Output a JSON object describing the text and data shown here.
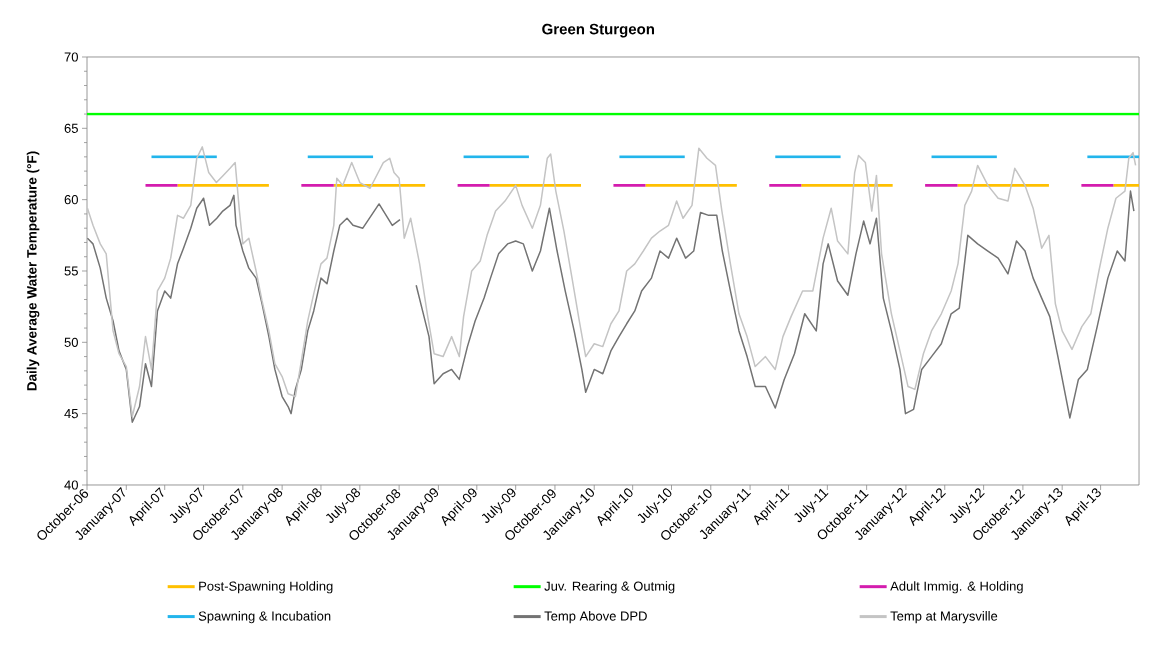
{
  "chart_data": {
    "type": "line",
    "title": "Green Sturgeon",
    "ylabel": "Daily Average Water Temperature (°F)",
    "xlim": [
      "2006-10-01",
      "2013-06-30"
    ],
    "xticks": [
      {
        "value": "2006-10-01",
        "label": "October-06"
      },
      {
        "value": "2007-01-01",
        "label": "January-07"
      },
      {
        "value": "2007-04-01",
        "label": "April-07"
      },
      {
        "value": "2007-07-01",
        "label": "July-07"
      },
      {
        "value": "2007-10-01",
        "label": "October-07"
      },
      {
        "value": "2008-01-01",
        "label": "January-08"
      },
      {
        "value": "2008-04-01",
        "label": "April-08"
      },
      {
        "value": "2008-07-01",
        "label": "July-08"
      },
      {
        "value": "2008-10-01",
        "label": "October-08"
      },
      {
        "value": "2009-01-01",
        "label": "January-09"
      },
      {
        "value": "2009-04-01",
        "label": "April-09"
      },
      {
        "value": "2009-07-01",
        "label": "July-09"
      },
      {
        "value": "2009-10-01",
        "label": "October-09"
      },
      {
        "value": "2010-01-01",
        "label": "January-10"
      },
      {
        "value": "2010-04-01",
        "label": "April-10"
      },
      {
        "value": "2010-07-01",
        "label": "July-10"
      },
      {
        "value": "2010-10-01",
        "label": "October-10"
      },
      {
        "value": "2011-01-01",
        "label": "January-11"
      },
      {
        "value": "2011-04-01",
        "label": "April-11"
      },
      {
        "value": "2011-07-01",
        "label": "July-11"
      },
      {
        "value": "2011-10-01",
        "label": "October-11"
      },
      {
        "value": "2012-01-01",
        "label": "January-12"
      },
      {
        "value": "2012-04-01",
        "label": "April-12"
      },
      {
        "value": "2012-07-01",
        "label": "July-12"
      },
      {
        "value": "2012-10-01",
        "label": "October-12"
      },
      {
        "value": "2013-01-01",
        "label": "January-13"
      },
      {
        "value": "2013-04-01",
        "label": "April-13"
      }
    ],
    "ylim": [
      40,
      70
    ],
    "yticks": [
      40,
      {
        "value": 41,
        "label": null
      },
      {
        "value": 42,
        "label": null
      },
      {
        "value": 43,
        "label": null
      },
      {
        "value": 44,
        "label": null
      },
      45,
      {
        "value": 46,
        "label": null
      },
      {
        "value": 47,
        "label": null
      },
      {
        "value": 48,
        "label": null
      },
      {
        "value": 49,
        "label": null
      },
      50,
      {
        "value": 51,
        "label": null
      },
      {
        "value": 52,
        "label": null
      },
      {
        "value": 53,
        "label": null
      },
      {
        "value": 54,
        "label": null
      },
      55,
      {
        "value": 56,
        "label": null
      },
      {
        "value": 57,
        "label": null
      },
      {
        "value": 58,
        "label": null
      },
      {
        "value": 59,
        "label": null
      },
      60,
      {
        "value": 61,
        "label": null
      },
      {
        "value": 62,
        "label": null
      },
      {
        "value": 63,
        "label": null
      },
      {
        "value": 64,
        "label": null
      },
      65,
      {
        "value": 66,
        "label": null
      },
      {
        "value": 67,
        "label": null
      },
      {
        "value": 68,
        "label": null
      },
      {
        "value": 69,
        "label": null
      },
      70
    ],
    "legend": "bottom",
    "line_style": "solid",
    "series": [
      {
        "name": "Post-Spawning Holding",
        "color": "#ffc000",
        "x": [
          "2007-05-01",
          "2007-12-01",
          "2007-12-15",
          "2008-05-01",
          "2008-12-01",
          "2008-12-15",
          "2009-05-01",
          "2009-12-01",
          "2009-12-15",
          "2010-05-01",
          "2010-12-01",
          "2010-12-15",
          "2011-05-01",
          "2011-12-01",
          "2011-12-15",
          "2012-05-01",
          "2012-12-01",
          "2012-12-15",
          "2013-05-01",
          "2013-06-30"
        ],
        "values": [
          61,
          61,
          null,
          61,
          61,
          null,
          61,
          61,
          null,
          61,
          61,
          null,
          61,
          61,
          null,
          61,
          61,
          null,
          61,
          61
        ]
      },
      {
        "name": "Juv. Rearing & Outmig",
        "color": "#00ff00",
        "x": [
          "2006-10-01",
          "2013-06-30"
        ],
        "values": [
          66,
          66
        ]
      },
      {
        "name": "Adult Immig. & Holding",
        "color": "#d41cae",
        "x": [
          "2007-02-15",
          "2007-05-01",
          "2007-05-15",
          "2008-02-15",
          "2008-05-01",
          "2008-05-15",
          "2009-02-15",
          "2009-05-01",
          "2009-05-15",
          "2010-02-15",
          "2010-05-01",
          "2010-05-15",
          "2011-02-15",
          "2011-05-01",
          "2011-05-15",
          "2012-02-15",
          "2012-05-01",
          "2012-05-15",
          "2013-02-15",
          "2013-05-01"
        ],
        "values": [
          61,
          61,
          null,
          61,
          61,
          null,
          61,
          61,
          null,
          61,
          61,
          null,
          61,
          61,
          null,
          61,
          61,
          null,
          61,
          61
        ]
      },
      {
        "name": "Spawning & Incubation",
        "color": "#22b5ec",
        "x": [
          "2007-03-01",
          "2007-08-01",
          "2007-08-15",
          "2008-03-01",
          "2008-08-01",
          "2008-08-15",
          "2009-03-01",
          "2009-08-01",
          "2009-08-15",
          "2010-03-01",
          "2010-08-01",
          "2010-08-15",
          "2011-03-01",
          "2011-08-01",
          "2011-08-15",
          "2012-03-01",
          "2012-08-01",
          "2012-08-15",
          "2013-03-01",
          "2013-06-30"
        ],
        "values": [
          63,
          63,
          null,
          63,
          63,
          null,
          63,
          63,
          null,
          63,
          63,
          null,
          63,
          63,
          null,
          63,
          63,
          null,
          63,
          63
        ]
      },
      {
        "name": "Temp Above DPD",
        "color": "#737373",
        "x": [
          "2006-10-02",
          "2006-10-15",
          "2006-11-01",
          "2006-11-15",
          "2006-12-01",
          "2006-12-15",
          "2007-01-01",
          "2007-01-15",
          "2007-02-01",
          "2007-02-15",
          "2007-03-01",
          "2007-03-15",
          "2007-04-01",
          "2007-04-15",
          "2007-05-01",
          "2007-05-15",
          "2007-06-01",
          "2007-06-15",
          "2007-07-01",
          "2007-07-15",
          "2007-08-01",
          "2007-08-15",
          "2007-09-01",
          "2007-09-10",
          "2007-09-15",
          "2007-10-01",
          "2007-10-15",
          "2007-11-01",
          "2007-11-15",
          "2007-12-01",
          "2007-12-15",
          "2008-01-01",
          "2008-01-15",
          "2008-01-22",
          "2008-02-01",
          "2008-02-15",
          "2008-03-01",
          "2008-03-15",
          "2008-04-01",
          "2008-04-15",
          "2008-05-01",
          "2008-05-15",
          "2008-06-01",
          "2008-06-15",
          "2008-07-08",
          "2008-08-15",
          "2008-09-15",
          "2008-10-03",
          "2008-10-20",
          "2008-11-10",
          "2008-11-25",
          "2008-12-10",
          "2008-12-22",
          "2009-01-12",
          "2009-02-01",
          "2009-02-19",
          "2009-03-10",
          "2009-03-28",
          "2009-04-18",
          "2009-05-03",
          "2009-05-22",
          "2009-06-12",
          "2009-07-01",
          "2009-07-19",
          "2009-08-09",
          "2009-08-28",
          "2009-09-18",
          "2009-10-06",
          "2009-10-25",
          "2009-11-15",
          "2009-12-03",
          "2009-12-12",
          "2010-01-01",
          "2010-01-21",
          "2010-02-09",
          "2010-02-28",
          "2010-03-18",
          "2010-04-06",
          "2010-04-22",
          "2010-05-15",
          "2010-06-04",
          "2010-06-24",
          "2010-07-13",
          "2010-08-03",
          "2010-08-22",
          "2010-09-07",
          "2010-09-26",
          "2010-10-15",
          "2010-10-28",
          "2010-11-16",
          "2010-12-06",
          "2010-12-25",
          "2011-01-13",
          "2011-02-06",
          "2011-03-01",
          "2011-03-22",
          "2011-04-15",
          "2011-05-09",
          "2011-06-05",
          "2011-06-21",
          "2011-07-03",
          "2011-07-25",
          "2011-08-18",
          "2011-09-06",
          "2011-09-24",
          "2011-10-09",
          "2011-10-24",
          "2011-11-09",
          "2011-11-28",
          "2011-12-18",
          "2011-12-31",
          "2012-01-19",
          "2012-02-07",
          "2012-03-01",
          "2012-03-24",
          "2012-04-16",
          "2012-05-05",
          "2012-05-25",
          "2012-06-17",
          "2012-07-11",
          "2012-08-04",
          "2012-08-27",
          "2012-09-16",
          "2012-10-06",
          "2012-10-25",
          "2012-11-14",
          "2012-12-03",
          "2012-12-22",
          "2013-01-19",
          "2013-02-08",
          "2013-03-01",
          "2013-03-24",
          "2013-04-18",
          "2013-05-10",
          "2013-05-28",
          "2013-06-10",
          "2013-06-18"
        ],
        "values": [
          57.3,
          56.9,
          55.2,
          53.1,
          51.5,
          49.4,
          48.1,
          44.4,
          45.5,
          48.5,
          46.9,
          52.2,
          53.6,
          53.1,
          55.5,
          56.6,
          58.0,
          59.4,
          60.1,
          58.2,
          58.7,
          59.2,
          59.6,
          60.3,
          58.2,
          56.4,
          55.2,
          54.5,
          52.7,
          50.4,
          48.1,
          46.2,
          45.5,
          45.0,
          46.7,
          48.1,
          50.8,
          52.2,
          54.5,
          54.1,
          56.4,
          58.2,
          58.7,
          58.2,
          58.0,
          59.7,
          58.2,
          58.6,
          null,
          54.0,
          52.2,
          50.4,
          47.1,
          47.8,
          48.1,
          47.4,
          49.7,
          51.5,
          53.1,
          54.5,
          56.2,
          56.9,
          57.1,
          56.9,
          55.0,
          56.4,
          59.4,
          56.4,
          53.6,
          50.8,
          48.1,
          46.5,
          48.1,
          47.8,
          49.4,
          50.4,
          51.3,
          52.2,
          53.6,
          54.5,
          56.4,
          55.9,
          57.3,
          55.9,
          56.4,
          59.1,
          58.9,
          58.9,
          56.4,
          53.6,
          50.8,
          49.0,
          46.9,
          46.9,
          45.4,
          47.4,
          49.2,
          52.0,
          50.8,
          55.5,
          56.9,
          54.3,
          53.3,
          56.2,
          58.5,
          56.9,
          58.7,
          53.1,
          50.8,
          48.1,
          45.0,
          45.3,
          48.1,
          49.0,
          49.9,
          52.0,
          52.4,
          57.5,
          56.9,
          56.4,
          55.9,
          54.8,
          57.1,
          56.4,
          54.5,
          53.1,
          51.8,
          49.0,
          44.7,
          47.4,
          48.1,
          51.1,
          54.5,
          56.4,
          55.7,
          60.6,
          59.2
        ]
      },
      {
        "name": "Temp at Marysville",
        "color": "#c4c4c4",
        "x": [
          "2006-10-02",
          "2006-10-15",
          "2006-11-01",
          "2006-11-15",
          "2006-12-01",
          "2006-12-15",
          "2007-01-01",
          "2007-01-15",
          "2007-02-01",
          "2007-02-15",
          "2007-03-01",
          "2007-03-15",
          "2007-04-01",
          "2007-04-15",
          "2007-05-01",
          "2007-05-15",
          "2007-06-01",
          "2007-06-15",
          "2007-06-28",
          "2007-07-13",
          "2007-07-31",
          "2007-08-16",
          "2007-09-01",
          "2007-09-13",
          "2007-09-23",
          "2007-10-01",
          "2007-10-15",
          "2007-11-01",
          "2007-11-15",
          "2007-12-01",
          "2007-12-15",
          "2008-01-01",
          "2008-01-15",
          "2008-02-01",
          "2008-02-15",
          "2008-03-01",
          "2008-03-15",
          "2008-04-01",
          "2008-04-15",
          "2008-05-01",
          "2008-05-08",
          "2008-05-22",
          "2008-06-12",
          "2008-07-01",
          "2008-07-25",
          "2008-08-25",
          "2008-09-09",
          "2008-09-19",
          "2008-10-01",
          "2008-10-13",
          "2008-10-28",
          "2008-11-18",
          "2008-12-07",
          "2008-12-22",
          "2009-01-12",
          "2009-02-01",
          "2009-02-19",
          "2009-03-01",
          "2009-03-20",
          "2009-04-09",
          "2009-04-25",
          "2009-05-15",
          "2009-06-06",
          "2009-07-01",
          "2009-07-16",
          "2009-08-09",
          "2009-08-28",
          "2009-09-13",
          "2009-09-21",
          "2009-10-03",
          "2009-10-22",
          "2009-11-10",
          "2009-11-27",
          "2009-12-12",
          "2010-01-01",
          "2010-01-21",
          "2010-02-09",
          "2010-02-28",
          "2010-03-18",
          "2010-04-06",
          "2010-04-26",
          "2010-05-15",
          "2010-06-04",
          "2010-06-24",
          "2010-07-13",
          "2010-07-28",
          "2010-08-18",
          "2010-09-03",
          "2010-09-22",
          "2010-10-12",
          "2010-10-27",
          "2010-11-16",
          "2010-12-06",
          "2010-12-25",
          "2011-01-13",
          "2011-02-06",
          "2011-03-01",
          "2011-03-19",
          "2011-04-07",
          "2011-05-04",
          "2011-05-28",
          "2011-06-21",
          "2011-07-10",
          "2011-07-25",
          "2011-08-18",
          "2011-09-03",
          "2011-09-12",
          "2011-09-28",
          "2011-10-13",
          "2011-10-24",
          "2011-11-05",
          "2011-11-28",
          "2011-12-18",
          "2012-01-06",
          "2012-01-22",
          "2012-02-11",
          "2012-03-01",
          "2012-03-24",
          "2012-04-16",
          "2012-05-02",
          "2012-05-18",
          "2012-06-03",
          "2012-06-17",
          "2012-07-11",
          "2012-08-04",
          "2012-08-27",
          "2012-09-12",
          "2012-10-06",
          "2012-10-25",
          "2012-11-14",
          "2012-12-01",
          "2012-12-16",
          "2013-01-01",
          "2013-01-24",
          "2013-02-16",
          "2013-03-09",
          "2013-03-28",
          "2013-04-18",
          "2013-05-07",
          "2013-05-28",
          "2013-06-06",
          "2013-06-16",
          "2013-06-22"
        ],
        "values": [
          59.4,
          58.2,
          56.9,
          56.2,
          50.8,
          49.2,
          48.3,
          44.8,
          46.9,
          50.4,
          48.1,
          53.6,
          54.5,
          55.9,
          58.9,
          58.7,
          59.6,
          62.9,
          63.7,
          61.9,
          61.2,
          61.7,
          62.2,
          62.6,
          59.2,
          56.9,
          57.3,
          55.0,
          52.9,
          50.8,
          48.5,
          47.6,
          46.4,
          46.2,
          48.7,
          51.5,
          53.4,
          55.5,
          55.9,
          58.2,
          61.5,
          61.0,
          62.6,
          61.2,
          60.8,
          62.6,
          62.9,
          61.9,
          61.5,
          57.3,
          58.7,
          55.5,
          51.8,
          49.2,
          49.0,
          50.4,
          49.0,
          51.8,
          55.0,
          55.7,
          57.5,
          59.2,
          59.9,
          61.0,
          59.6,
          58.0,
          59.6,
          62.9,
          63.2,
          60.6,
          57.8,
          54.5,
          51.5,
          49.0,
          49.9,
          49.7,
          51.3,
          52.2,
          55.0,
          55.5,
          56.4,
          57.3,
          57.8,
          58.2,
          59.9,
          58.7,
          59.6,
          63.6,
          62.9,
          62.4,
          59.2,
          55.5,
          52.0,
          50.4,
          48.3,
          49.0,
          48.1,
          50.4,
          51.8,
          53.6,
          53.6,
          57.3,
          59.4,
          57.1,
          56.2,
          61.9,
          63.1,
          62.6,
          59.2,
          61.7,
          56.2,
          52.0,
          49.4,
          46.9,
          46.7,
          49.2,
          50.8,
          52.0,
          53.6,
          55.5,
          59.6,
          60.6,
          62.4,
          61.0,
          60.1,
          59.9,
          62.2,
          61.0,
          59.4,
          56.6,
          57.5,
          52.7,
          50.8,
          49.5,
          51.1,
          52.0,
          55.0,
          58.0,
          60.1,
          60.6,
          62.9,
          63.3,
          62.4
        ]
      }
    ]
  }
}
